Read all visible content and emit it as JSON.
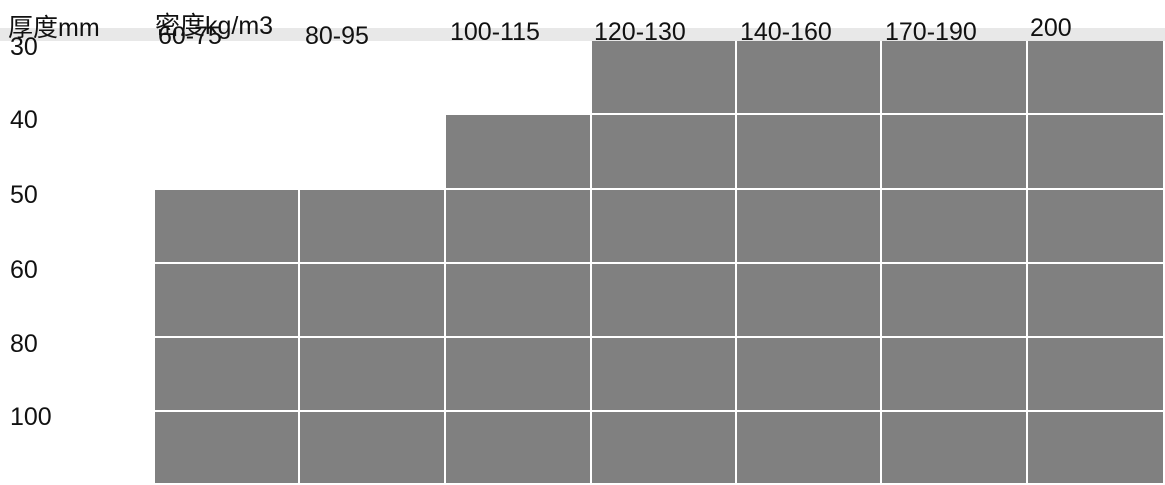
{
  "table": {
    "row_header": "厚度mm",
    "col_header": "密度kg/m3",
    "columns": [
      "60-75",
      "80-95",
      "100-115",
      "120-130",
      "140-160",
      "170-190",
      "200"
    ],
    "rows": [
      "30",
      "40",
      "50",
      "60",
      "80",
      "100"
    ],
    "availability": [
      [
        false,
        false,
        false,
        true,
        true,
        true,
        true
      ],
      [
        false,
        false,
        true,
        true,
        true,
        true,
        true
      ],
      [
        true,
        true,
        true,
        true,
        true,
        true,
        true
      ],
      [
        true,
        true,
        true,
        true,
        true,
        true,
        true
      ],
      [
        true,
        true,
        true,
        true,
        true,
        true,
        true
      ],
      [
        true,
        true,
        true,
        true,
        true,
        true,
        true
      ]
    ]
  },
  "colors": {
    "filled": "#808080",
    "grid_line": "#ffffff",
    "header_band": "#e8e8e8",
    "text": "#111111"
  }
}
